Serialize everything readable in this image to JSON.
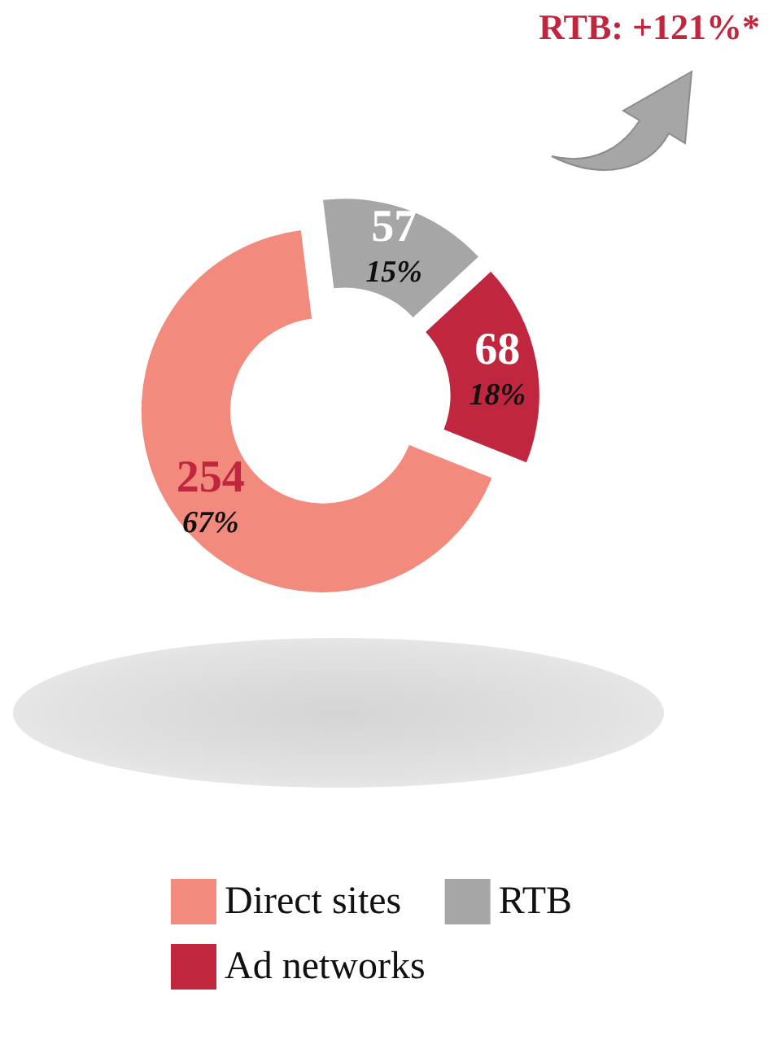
{
  "chart_data": {
    "type": "donut",
    "categories": [
      "Direct sites",
      "Ad networks",
      "RTB"
    ],
    "values": [
      254,
      68,
      57
    ],
    "colors": [
      "#f28b7d",
      "#c0273f",
      "#a6a6a6"
    ],
    "value_labels": [
      "254\n67%",
      "68\n18%",
      "57\n15%"
    ],
    "annotations": [
      "RTB: +121%*"
    ],
    "legend": "bottom"
  }
}
